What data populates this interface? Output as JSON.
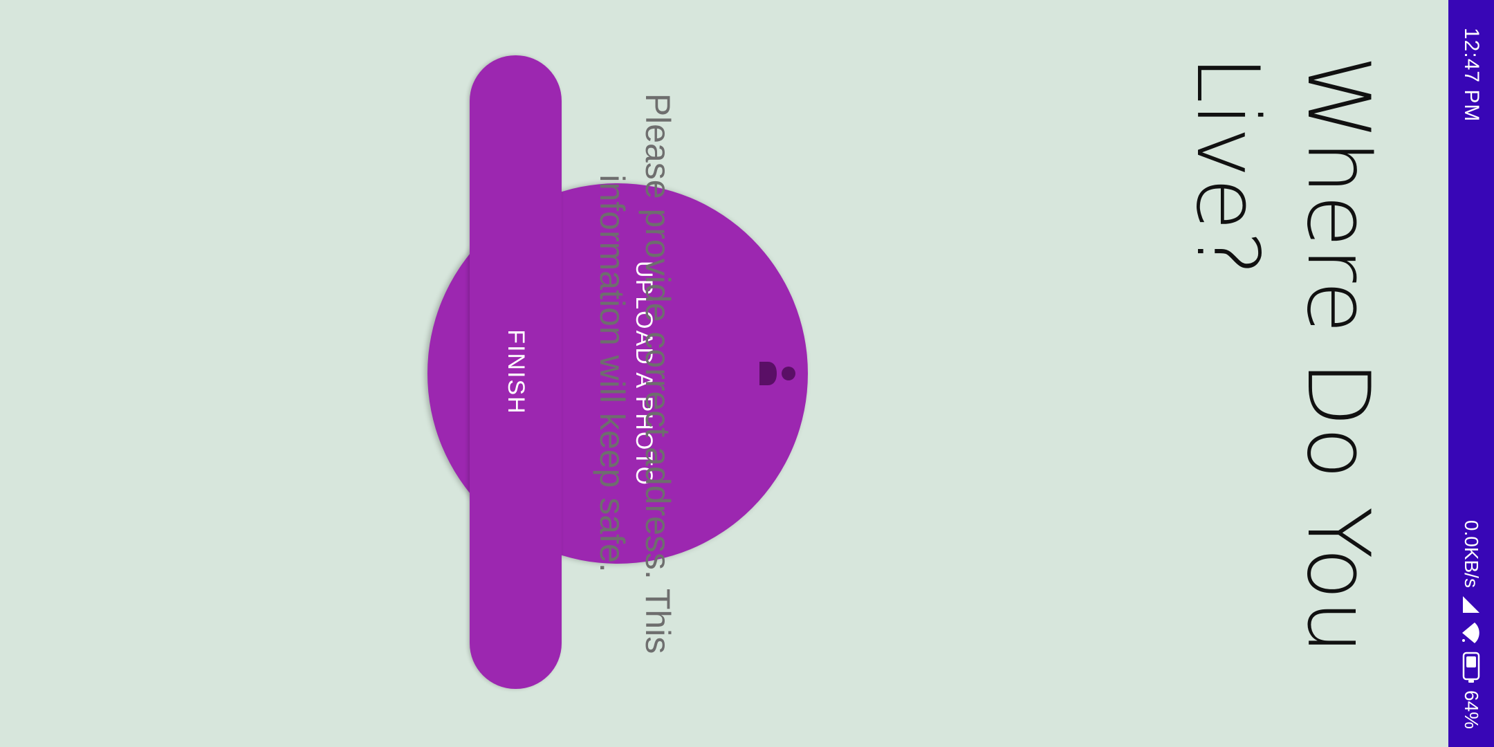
{
  "status_bar": {
    "time": "12:47 PM",
    "network_speed": "0.0KB/s",
    "battery_percent": "64%",
    "icons": [
      "signal-icon",
      "wifi-icon",
      "battery-icon"
    ]
  },
  "page": {
    "title": "Where Do You Live?",
    "info_text": "Please provide correct address. This information will keep safe."
  },
  "upload": {
    "label": "UPLOAD A PHOTO",
    "icon": "person-icon"
  },
  "finish": {
    "label": "FINISH"
  },
  "colors": {
    "background": "#d7e6dc",
    "status_bar": "#3806b6",
    "accent": "#9c27b0",
    "title": "#111111",
    "info_text": "#6e6e6e",
    "button_text": "#ffffff"
  }
}
